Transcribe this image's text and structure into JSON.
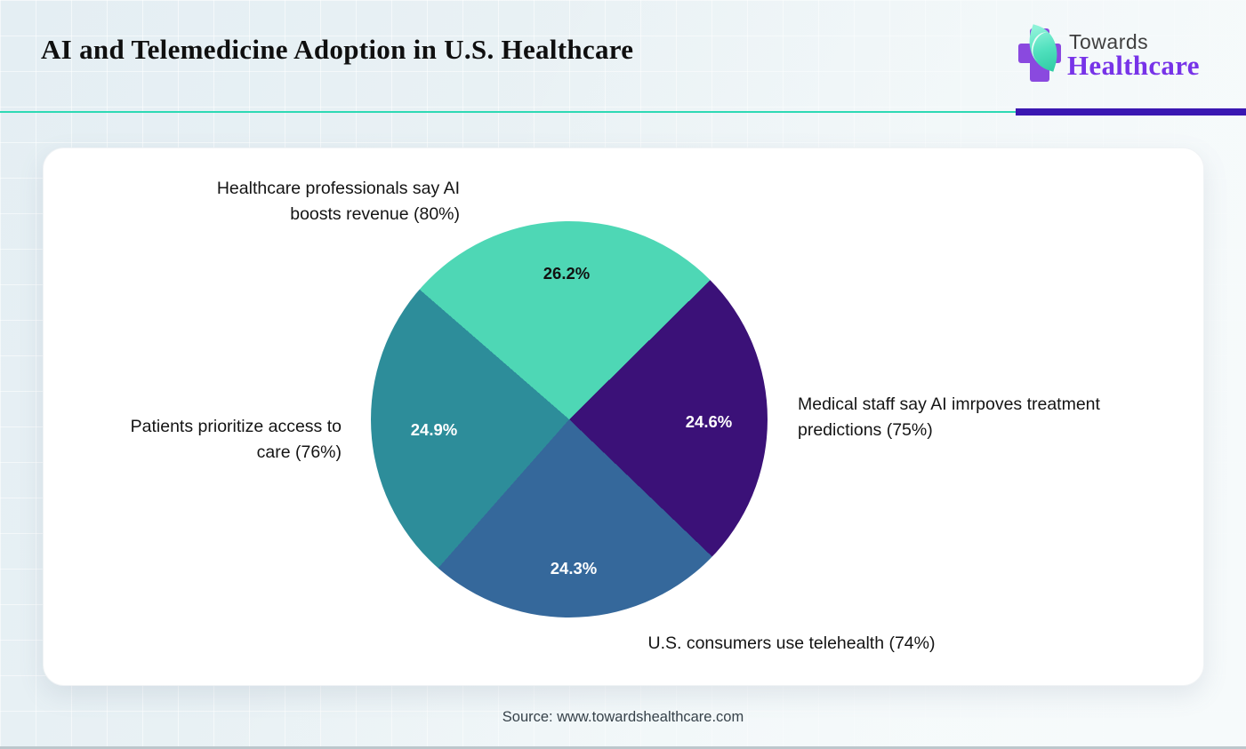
{
  "header": {
    "title": "AI and Telemedicine Adoption in U.S. Healthcare",
    "logo": {
      "line1": "Towards",
      "line2": "Healthcare",
      "cross_color": "#8a49df",
      "leaf_color": "#4fe0bd",
      "line1_color": "#3f3f3f",
      "line2_color": "#7733e8"
    }
  },
  "divider": {
    "teal_color": "#2ed9b4",
    "purple_color": "#3a17b2"
  },
  "chart_data": {
    "type": "pie",
    "title": "AI and Telemedicine Adoption in U.S. Healthcare",
    "start_angle_deg": -49,
    "legend_position": "outside-labels",
    "slices": [
      {
        "label": "Healthcare professionals say AI boosts revenue (80%)",
        "value": 26.2,
        "pct_label": "26.2%",
        "color": "#4ed7b5",
        "text_color": "#111111"
      },
      {
        "label": "Medical staff say AI imrpoves treatment predictions (75%)",
        "value": 24.6,
        "pct_label": "24.6%",
        "color": "#3b1178",
        "text_color": "#ffffff"
      },
      {
        "label": "U.S. consumers use telehealth (74%)",
        "value": 24.3,
        "pct_label": "24.3%",
        "color": "#35689b",
        "text_color": "#ffffff"
      },
      {
        "label": "Patients prioritize access to care (76%)",
        "value": 24.9,
        "pct_label": "24.9%",
        "color": "#2d8d9a",
        "text_color": "#ffffff"
      }
    ]
  },
  "footer": {
    "source": "Source: www.towardshealthcare.com"
  }
}
